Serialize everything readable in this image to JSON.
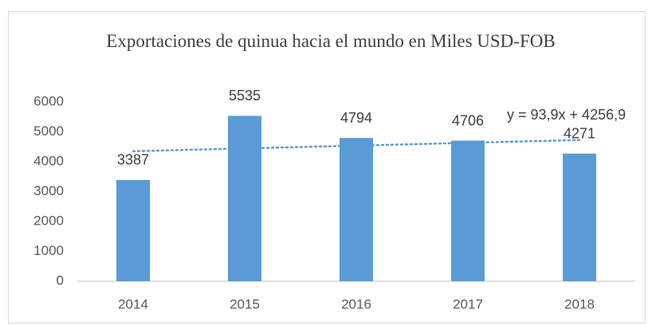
{
  "chart_data": {
    "type": "bar",
    "title": "Exportaciones de quinua hacia el mundo en Miles USD-FOB",
    "categories": [
      "2014",
      "2015",
      "2016",
      "2017",
      "2018"
    ],
    "values": [
      3387,
      5535,
      4794,
      4706,
      4271
    ],
    "color": "#5b9bd5",
    "ylim": [
      0,
      6000
    ],
    "yticks": [
      0,
      1000,
      2000,
      3000,
      4000,
      5000,
      6000
    ],
    "grid": false,
    "trendline": {
      "slope": 93.9,
      "intercept": 4256.9,
      "label": "y = 93,9x + 4256,9",
      "color": "#5b9bd5"
    }
  }
}
